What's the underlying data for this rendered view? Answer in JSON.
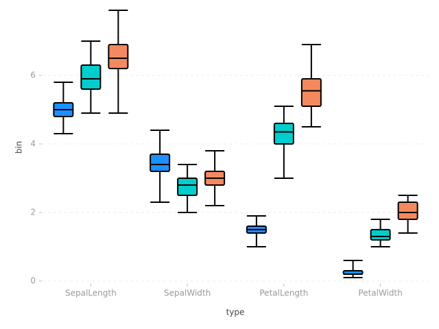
{
  "chart_data": {
    "type": "box",
    "x_label": "type",
    "y_label": "bin",
    "categories": [
      "SepalLength",
      "SepalWidth",
      "PetalLength",
      "PetalWidth"
    ],
    "ylim": [
      -0.2,
      8.0
    ],
    "yticks": [
      0,
      2,
      4,
      6
    ],
    "grid": true,
    "series": [
      {
        "color": "#1e8fff",
        "min": [
          4.3,
          2.3,
          1.0,
          0.1
        ],
        "q1": [
          4.8,
          3.2,
          1.4,
          0.2
        ],
        "median": [
          5.0,
          3.4,
          1.5,
          0.2
        ],
        "q3": [
          5.2,
          3.7,
          1.6,
          0.3
        ],
        "max": [
          5.8,
          4.4,
          1.9,
          0.6
        ]
      },
      {
        "color": "#00cdcd",
        "min": [
          4.9,
          2.0,
          3.0,
          1.0
        ],
        "q1": [
          5.6,
          2.5,
          4.0,
          1.2
        ],
        "median": [
          5.9,
          2.8,
          4.35,
          1.3
        ],
        "q3": [
          6.3,
          3.0,
          4.6,
          1.5
        ],
        "max": [
          7.0,
          3.4,
          5.1,
          1.8
        ]
      },
      {
        "color": "#f4895f",
        "min": [
          4.9,
          2.2,
          4.5,
          1.4
        ],
        "q1": [
          6.2,
          2.8,
          5.1,
          1.8
        ],
        "median": [
          6.5,
          3.0,
          5.55,
          2.0
        ],
        "q3": [
          6.9,
          3.2,
          5.9,
          2.3
        ],
        "max": [
          7.9,
          3.8,
          6.9,
          2.5
        ]
      }
    ]
  }
}
